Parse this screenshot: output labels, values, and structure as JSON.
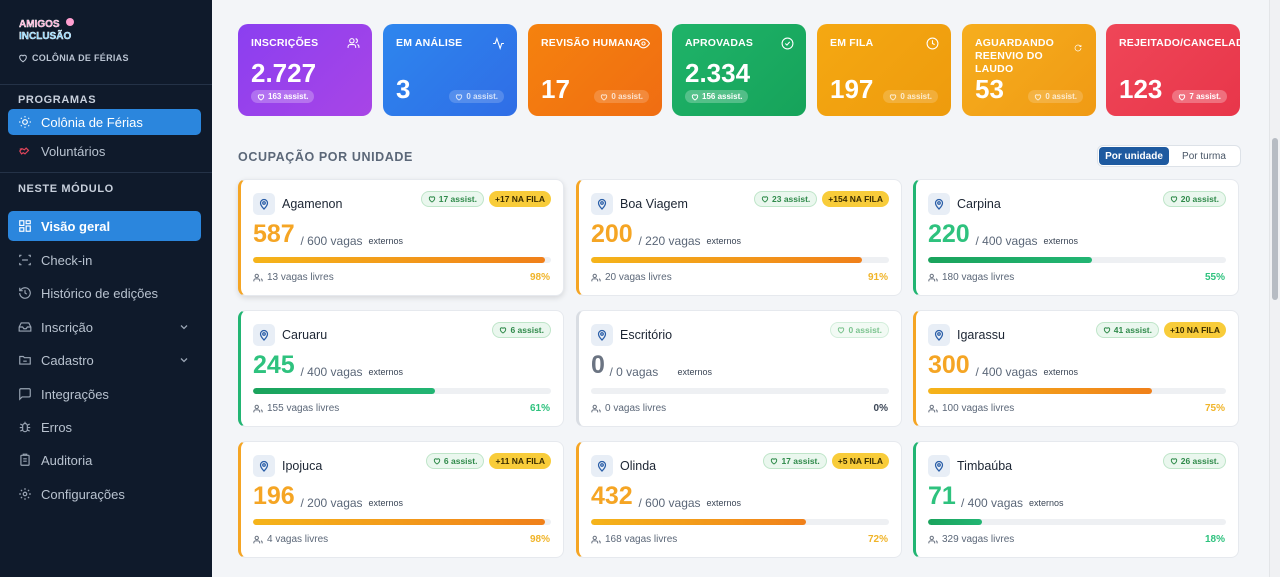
{
  "sidebar": {
    "logo_text": "AMIGOS DA INCLUSÃO",
    "program_subtitle": "COLÔNIA DE FÉRIAS",
    "section_programs": "PROGRAMAS",
    "programs": [
      {
        "label": "Colônia de Férias",
        "icon": "sun-icon",
        "active": true
      },
      {
        "label": "Voluntários",
        "icon": "handshake-icon",
        "active": false
      }
    ],
    "section_module": "NESTE MÓDULO",
    "module_items": [
      {
        "label": "Visão geral",
        "icon": "grid-icon",
        "active": true
      },
      {
        "label": "Check-in",
        "icon": "scan-icon"
      },
      {
        "label": "Histórico de edições",
        "icon": "history-icon"
      },
      {
        "label": "Inscrição",
        "icon": "inbox-icon",
        "expandable": true
      },
      {
        "label": "Cadastro",
        "icon": "folder-icon",
        "expandable": true
      },
      {
        "label": "Integrações",
        "icon": "chat-icon"
      },
      {
        "label": "Erros",
        "icon": "bug-icon"
      },
      {
        "label": "Auditoria",
        "icon": "clipboard-icon"
      },
      {
        "label": "Configurações",
        "icon": "gear-icon"
      }
    ]
  },
  "stats": [
    {
      "label": "INSCRIÇÕES",
      "value": "2.727",
      "badge": "163 assist.",
      "icon": "users-icon",
      "color_from": "#8b3ff0",
      "color_to": "#a845e6"
    },
    {
      "label": "EM ANÁLISE",
      "value": "3",
      "badge": "0 assist.",
      "icon": "activity-icon",
      "color_from": "#2e86ee",
      "color_to": "#2f6de6"
    },
    {
      "label": "REVISÃO HUMANA",
      "value": "17",
      "badge": "0 assist.",
      "icon": "eye-icon",
      "color_from": "#f5820e",
      "color_to": "#f06d12"
    },
    {
      "label": "APROVADAS",
      "value": "2.334",
      "badge": "156 assist.",
      "icon": "check-circle-icon",
      "color_from": "#1fb369",
      "color_to": "#16a35a"
    },
    {
      "label": "EM FILA",
      "value": "197",
      "badge": "0 assist.",
      "icon": "clock-icon",
      "color_from": "#f5a812",
      "color_to": "#ee9b0d"
    },
    {
      "label": "AGUARDANDO REENVIO DO LAUDO",
      "value": "53",
      "badge": "0 assist.",
      "icon": "refresh-icon",
      "color_from": "#f6ae1e",
      "color_to": "#f09a14"
    },
    {
      "label": "REJEITADO/CANCELADO",
      "value": "123",
      "badge": "7 assist.",
      "icon": "",
      "color_from": "#ef4658",
      "color_to": "#e8364a"
    }
  ],
  "occupancy": {
    "title": "OCUPAÇÃO POR UNIDADE",
    "toggle": [
      "Por unidade",
      "Por turma"
    ]
  },
  "units": [
    {
      "name": "Agamenon",
      "value": "587",
      "capacity": "/ 600 vagas",
      "ext": "externos",
      "assist": "17 assist.",
      "queue": "+17 NA FILA",
      "livres": "13 vagas livres",
      "pct_label": "98%",
      "pct": 0.98,
      "level": "high"
    },
    {
      "name": "Boa Viagem",
      "value": "200",
      "capacity": "/ 220 vagas",
      "ext": "externos",
      "assist": "23 assist.",
      "queue": "+154 NA FILA",
      "livres": "20 vagas livres",
      "pct_label": "91%",
      "pct": 0.91,
      "level": "high"
    },
    {
      "name": "Carpina",
      "value": "220",
      "capacity": "/ 400 vagas",
      "ext": "externos",
      "assist": "20 assist.",
      "queue": "",
      "livres": "180 vagas livres",
      "pct_label": "55%",
      "pct": 0.55,
      "level": "ok"
    },
    {
      "name": "Caruaru",
      "value": "245",
      "capacity": "/ 400 vagas",
      "ext": "externos",
      "assist": "6 assist.",
      "queue": "",
      "livres": "155 vagas livres",
      "pct_label": "61%",
      "pct": 0.61,
      "level": "ok"
    },
    {
      "name": "Escritório",
      "value": "0",
      "capacity": "/ 0 vagas",
      "ext": "externos",
      "assist": "0 assist.",
      "queue": "",
      "livres": "0 vagas livres",
      "pct_label": "0%",
      "pct": 0,
      "level": "empty"
    },
    {
      "name": "Igarassu",
      "value": "300",
      "capacity": "/ 400 vagas",
      "ext": "externos",
      "assist": "41 assist.",
      "queue": "+10 NA FILA",
      "livres": "100 vagas livres",
      "pct_label": "75%",
      "pct": 0.75,
      "level": "high"
    },
    {
      "name": "Ipojuca",
      "value": "196",
      "capacity": "/ 200 vagas",
      "ext": "externos",
      "assist": "6 assist.",
      "queue": "+11 NA FILA",
      "livres": "4 vagas livres",
      "pct_label": "98%",
      "pct": 0.98,
      "level": "high"
    },
    {
      "name": "Olinda",
      "value": "432",
      "capacity": "/ 600 vagas",
      "ext": "externos",
      "assist": "17 assist.",
      "queue": "+5 NA FILA",
      "livres": "168 vagas livres",
      "pct_label": "72%",
      "pct": 0.72,
      "level": "high"
    },
    {
      "name": "Timbaúba",
      "value": "71",
      "capacity": "/ 400 vagas",
      "ext": "externos",
      "assist": "26 assist.",
      "queue": "",
      "livres": "329 vagas livres",
      "pct_label": "18%",
      "pct": 0.18,
      "level": "ok"
    }
  ],
  "colors": {
    "high_value": "#f5a524",
    "ok_value": "#2ec27e",
    "empty_value": "#6b7482",
    "high_pct": "#f0b429",
    "ok_pct": "#2ec27e",
    "empty_pct": "#3b4656"
  }
}
